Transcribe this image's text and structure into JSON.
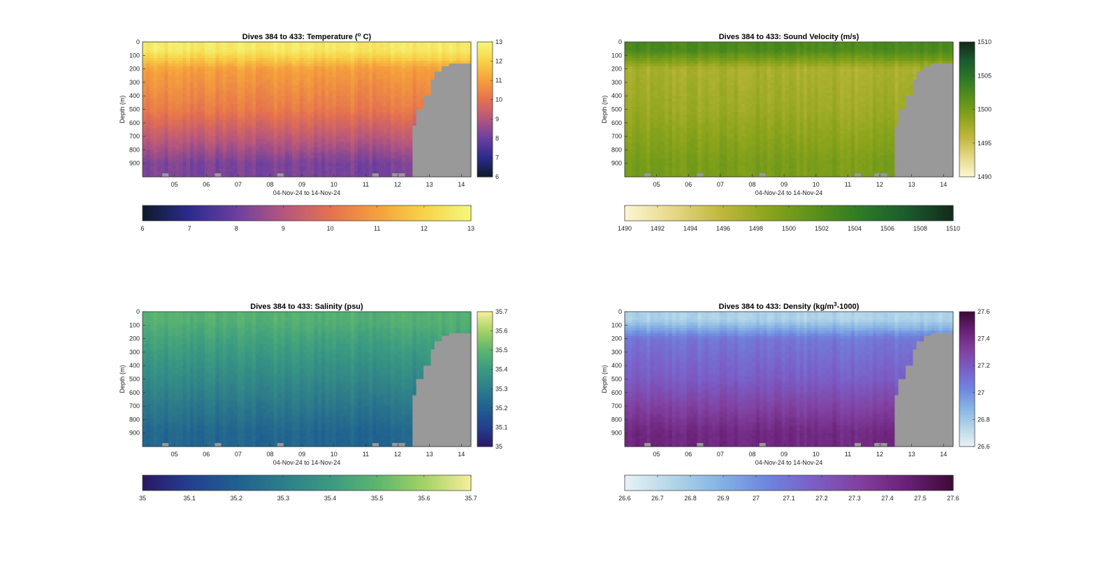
{
  "chart_data": [
    {
      "type": "heatmap",
      "variable": "temperature",
      "title": "Dives 384 to 433: Temperature (° C)",
      "title_main": "Dives 384 to 433: Temperature (",
      "title_sup": "o",
      "title_tail": " C)",
      "xlabel": "04-Nov-24 to 14-Nov-24",
      "ylabel": "Depth (m)",
      "x_ticks": [
        "05",
        "06",
        "07",
        "08",
        "09",
        "10",
        "11",
        "12",
        "13",
        "14"
      ],
      "y_ticks": [
        "0",
        "100",
        "200",
        "300",
        "400",
        "500",
        "600",
        "700",
        "800",
        "900"
      ],
      "ylim": [
        0,
        1000
      ],
      "clim": [
        6,
        13
      ],
      "side_colorbar_ticks": [
        "13",
        "12",
        "11",
        "10",
        "9",
        "8",
        "7",
        "6"
      ],
      "bottom_colorbar_ticks": [
        "6",
        "7",
        "8",
        "9",
        "10",
        "11",
        "12",
        "13"
      ],
      "colormap": [
        "#0d1b2a",
        "#2c2b8e",
        "#6b3fa0",
        "#b5567e",
        "#e4714f",
        "#f59f3c",
        "#f7d348",
        "#f6f77a"
      ],
      "profile": {
        "surface": 12.6,
        "z200": 11.0,
        "z500": 10.2,
        "z900": 8.2
      },
      "missing_color": "#999999"
    },
    {
      "type": "heatmap",
      "variable": "sound_velocity",
      "title": "Dives 384 to 433: Sound Velocity (m/s)",
      "title_main": "Dives 384 to 433: Sound Velocity (m/s)",
      "xlabel": "04-Nov-24 to 14-Nov-24",
      "ylabel": "Depth (m)",
      "x_ticks": [
        "05",
        "06",
        "07",
        "08",
        "09",
        "10",
        "11",
        "12",
        "13",
        "14"
      ],
      "y_ticks": [
        "0",
        "100",
        "200",
        "300",
        "400",
        "500",
        "600",
        "700",
        "800",
        "900"
      ],
      "ylim": [
        0,
        1000
      ],
      "clim": [
        1490,
        1510
      ],
      "side_colorbar_ticks": [
        "1510",
        "1505",
        "1500",
        "1495",
        "1490"
      ],
      "bottom_colorbar_ticks": [
        "1490",
        "1492",
        "1494",
        "1496",
        "1498",
        "1500",
        "1502",
        "1504",
        "1506",
        "1508",
        "1510"
      ],
      "colormap": [
        "#fcf6d2",
        "#e6d98a",
        "#c2b93e",
        "#8fa51c",
        "#5d921a",
        "#2f7b25",
        "#1a5c2e",
        "#132a1b"
      ],
      "profile": {
        "surface": 1502.5,
        "z200": 1497.0,
        "z500": 1497.8,
        "z900": 1499.8
      },
      "missing_color": "#999999"
    },
    {
      "type": "heatmap",
      "variable": "salinity",
      "title": "Dives 384 to 433: Salinity (psu)",
      "title_main": "Dives 384 to 433: Salinity (psu)",
      "xlabel": "04-Nov-24 to 14-Nov-24",
      "ylabel": "Depth (m)",
      "x_ticks": [
        "05",
        "06",
        "07",
        "08",
        "09",
        "10",
        "11",
        "12",
        "13",
        "14"
      ],
      "y_ticks": [
        "0",
        "100",
        "200",
        "300",
        "400",
        "500",
        "600",
        "700",
        "800",
        "900"
      ],
      "ylim": [
        0,
        1000
      ],
      "clim": [
        35.0,
        35.7
      ],
      "side_colorbar_ticks": [
        "35.7",
        "35.6",
        "35.5",
        "35.4",
        "35.3",
        "35.2",
        "35.1",
        "35"
      ],
      "bottom_colorbar_ticks": [
        "35",
        "35.1",
        "35.2",
        "35.3",
        "35.4",
        "35.5",
        "35.6",
        "35.7"
      ],
      "colormap": [
        "#2a1864",
        "#243f8f",
        "#1f6090",
        "#2e7d8a",
        "#3a9a82",
        "#5cb56f",
        "#a4d264",
        "#f6ef9d"
      ],
      "profile": {
        "surface": 35.48,
        "z200": 35.43,
        "z500": 35.34,
        "z900": 35.22
      },
      "missing_color": "#999999"
    },
    {
      "type": "heatmap",
      "variable": "density",
      "title": "Dives 384 to 433: Density (kg/m³-1000)",
      "title_main": "Dives 384 to 433: Density (kg/m",
      "title_sup": "3",
      "title_tail": "-1000)",
      "xlabel": "04-Nov-24 to 14-Nov-24",
      "ylabel": "Depth (m)",
      "x_ticks": [
        "05",
        "06",
        "07",
        "08",
        "09",
        "10",
        "11",
        "12",
        "13",
        "14"
      ],
      "y_ticks": [
        "0",
        "100",
        "200",
        "300",
        "400",
        "500",
        "600",
        "700",
        "800",
        "900"
      ],
      "ylim": [
        0,
        1000
      ],
      "clim": [
        26.6,
        27.6
      ],
      "side_colorbar_ticks": [
        "27.6",
        "27.4",
        "27.2",
        "27",
        "26.8",
        "26.6"
      ],
      "bottom_colorbar_ticks": [
        "26.6",
        "26.7",
        "26.8",
        "26.9",
        "27",
        "27.1",
        "27.2",
        "27.3",
        "27.4",
        "27.5",
        "27.6"
      ],
      "colormap": [
        "#e9f2f5",
        "#b4d6e8",
        "#86b4e4",
        "#6f86df",
        "#7a5fc8",
        "#81409f",
        "#6a2177",
        "#3c0a36"
      ],
      "profile": {
        "surface": 26.76,
        "z200": 27.08,
        "z500": 27.18,
        "z900": 27.42
      },
      "missing_color": "#999999"
    }
  ]
}
